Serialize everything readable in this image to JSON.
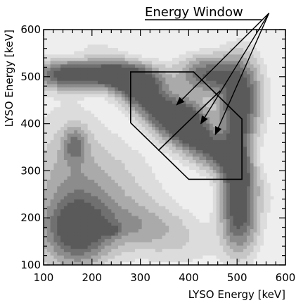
{
  "chart_data": {
    "type": "heatmap",
    "xlabel": "LYSO Energy [keV]",
    "ylabel": "LYSO Energy [keV]",
    "xlim": [
      100,
      600
    ],
    "ylim": [
      100,
      600
    ],
    "x_ticks": [
      100,
      200,
      300,
      400,
      500,
      600
    ],
    "y_ticks": [
      100,
      200,
      300,
      400,
      500,
      600
    ],
    "x_tick_labels": [
      "100",
      "200",
      "300",
      "400",
      "500",
      "600"
    ],
    "y_tick_labels": [
      "100",
      "200",
      "300",
      "400",
      "500",
      "600"
    ],
    "colormap": "greyscale, darker = more counts",
    "density_blobs": [
      {
        "x": 212,
        "y": 505,
        "sx": 55,
        "sy": 18,
        "w": 0.95,
        "rot": 0
      },
      {
        "x": 135,
        "y": 505,
        "sx": 35,
        "sy": 20,
        "w": 0.55,
        "rot": 0
      },
      {
        "x": 300,
        "y": 490,
        "sx": 35,
        "sy": 22,
        "w": 0.7,
        "rot": 0
      },
      {
        "x": 505,
        "y": 455,
        "sx": 28,
        "sy": 55,
        "w": 0.9,
        "rot": 0
      },
      {
        "x": 500,
        "y": 320,
        "sx": 20,
        "sy": 70,
        "w": 0.85,
        "rot": 0
      },
      {
        "x": 505,
        "y": 200,
        "sx": 25,
        "sy": 50,
        "w": 0.7,
        "rot": 0
      },
      {
        "x": 440,
        "y": 505,
        "sx": 40,
        "sy": 25,
        "w": 0.75,
        "rot": 0
      },
      {
        "x": 330,
        "y": 430,
        "sx": 85,
        "sy": 22,
        "w": 0.8,
        "rot": -45
      },
      {
        "x": 430,
        "y": 370,
        "sx": 85,
        "sy": 22,
        "w": 0.8,
        "rot": -45
      },
      {
        "x": 400,
        "y": 420,
        "sx": 30,
        "sy": 30,
        "w": 0.45,
        "rot": 0
      },
      {
        "x": 170,
        "y": 175,
        "sx": 40,
        "sy": 45,
        "w": 0.75,
        "rot": 0
      },
      {
        "x": 165,
        "y": 355,
        "sx": 16,
        "sy": 25,
        "w": 0.5,
        "rot": 0
      },
      {
        "x": 150,
        "y": 250,
        "sx": 55,
        "sy": 110,
        "w": 0.3,
        "rot": 0
      },
      {
        "x": 230,
        "y": 250,
        "sx": 70,
        "sy": 70,
        "w": 0.22,
        "rot": 0
      },
      {
        "x": 335,
        "y": 175,
        "sx": 75,
        "sy": 38,
        "w": 0.22,
        "rot": -20
      },
      {
        "x": 235,
        "y": 180,
        "sx": 70,
        "sy": 30,
        "w": 0.22,
        "rot": 0
      },
      {
        "x": 240,
        "y": 175,
        "sx": 12,
        "sy": 8,
        "w": 0.35,
        "rot": 0
      }
    ],
    "window_polygon": [
      [
        280,
        510
      ],
      [
        410,
        510
      ],
      [
        510,
        410
      ],
      [
        510,
        282
      ],
      [
        400,
        282
      ],
      [
        280,
        402
      ]
    ],
    "window_divider": [
      [
        337,
        343
      ],
      [
        465,
        470
      ]
    ]
  },
  "annotation": {
    "text": "Energy Window",
    "arrow_origin": [
      566,
      635
    ],
    "arrow_targets": [
      [
        375,
        440
      ],
      [
        455,
        377
      ],
      [
        425,
        400
      ]
    ]
  },
  "style": {
    "polygon_color": "#000000",
    "background": "#ffffff"
  }
}
